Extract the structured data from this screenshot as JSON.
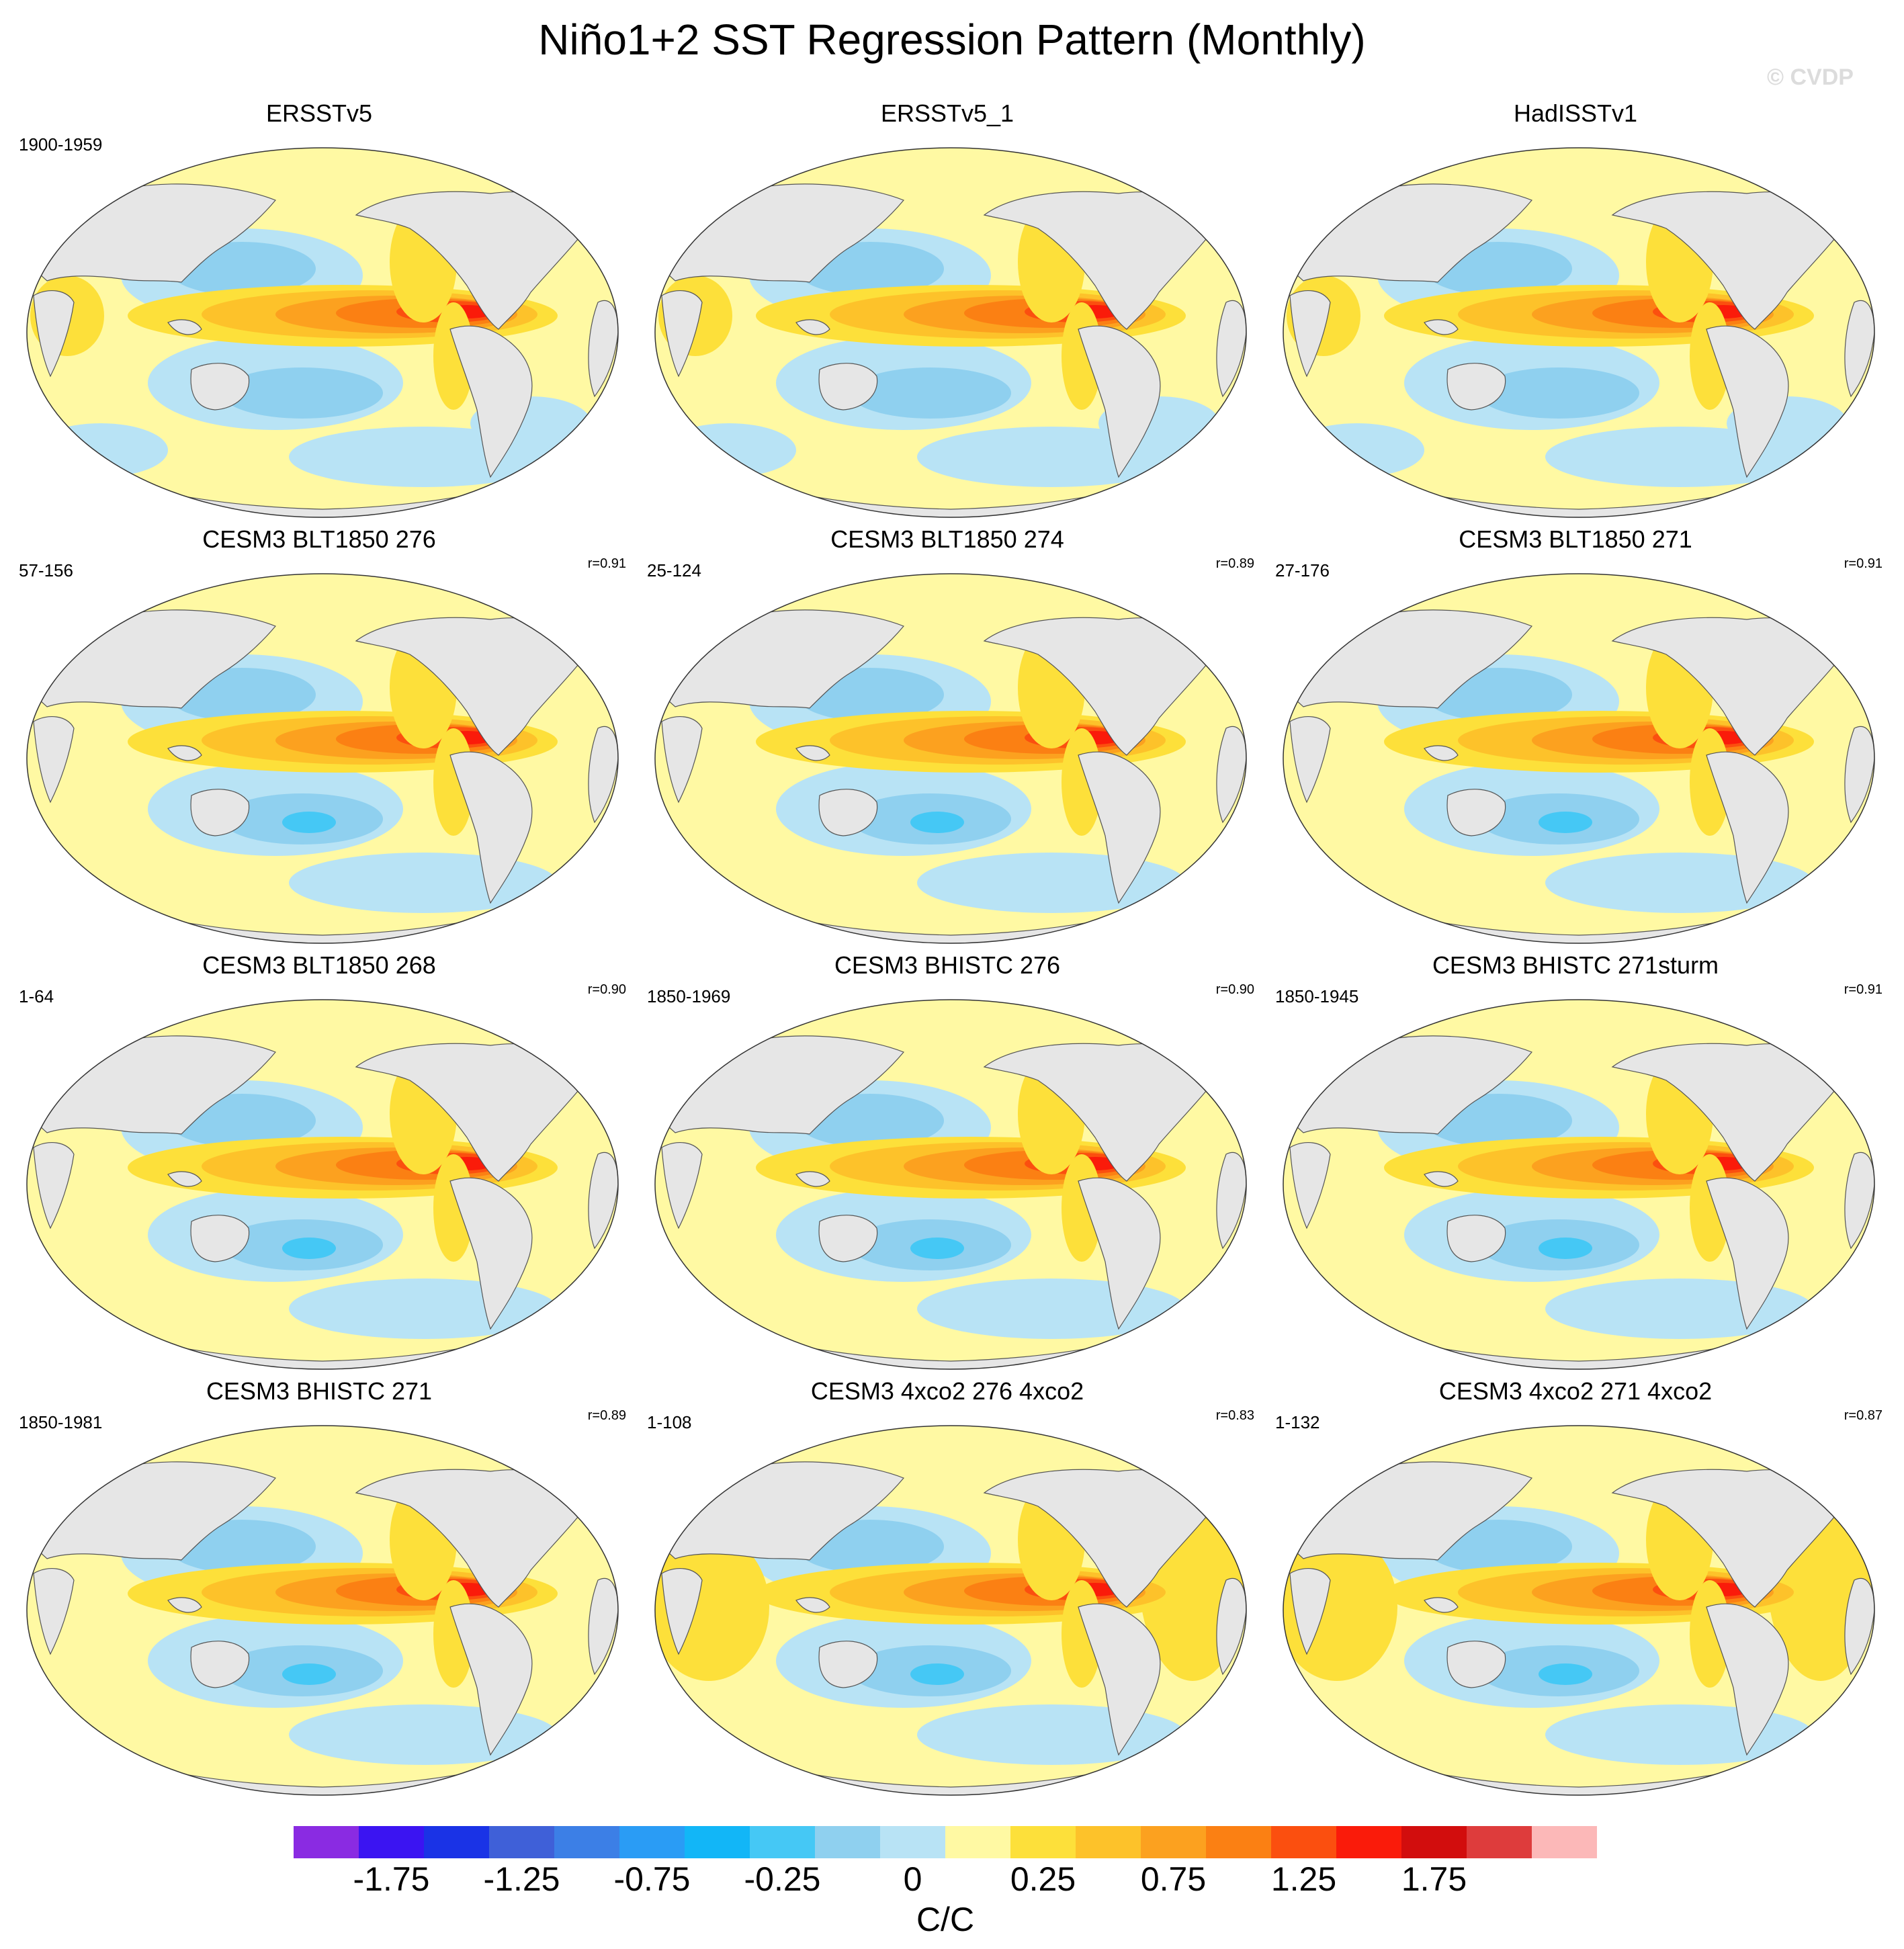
{
  "figure": {
    "title": "Niño1+2 SST Regression Pattern (Monthly)",
    "watermark": "© CVDP",
    "units": "C/C"
  },
  "colors": {
    "land": "#e6e6e6",
    "levels": [
      "#8a2be2",
      "#3b14f2",
      "#1a33e6",
      "#3f60d8",
      "#3c7fe6",
      "#2a9cf5",
      "#12b6f7",
      "#45c8f5",
      "#8fd0ef",
      "#b8e3f5",
      "#fff9a3",
      "#fde03a",
      "#fdc22a",
      "#fca11f",
      "#fb8013",
      "#fb4f0f",
      "#fa1b0a",
      "#d20d0d",
      "#de3c3c",
      "#fcb8b8"
    ],
    "water_ring": "#b8e3f5"
  },
  "colorbar": {
    "labels": [
      "-1.75",
      "-1.25",
      "-0.75",
      "-0.25",
      "0",
      "0.25",
      "0.75",
      "1.25",
      "1.75"
    ]
  },
  "panels": [
    {
      "title": "ERSSTv5",
      "period": "1900-1959",
      "corr": "",
      "pattern": "obs"
    },
    {
      "title": "ERSSTv5_1",
      "period": "",
      "corr": "",
      "pattern": "obs"
    },
    {
      "title": "HadISSTv1",
      "period": "",
      "corr": "",
      "pattern": "obs"
    },
    {
      "title": "CESM3 BLT1850 276",
      "period": "57-156",
      "corr": "r=0.91",
      "pattern": "model"
    },
    {
      "title": "CESM3 BLT1850 274",
      "period": "25-124",
      "corr": "r=0.89",
      "pattern": "model"
    },
    {
      "title": "CESM3 BLT1850 271",
      "period": "27-176",
      "corr": "r=0.91",
      "pattern": "model"
    },
    {
      "title": "CESM3 BLT1850 268",
      "period": "1-64",
      "corr": "r=0.90",
      "pattern": "model"
    },
    {
      "title": "CESM3 BHISTC 276",
      "period": "1850-1969",
      "corr": "r=0.90",
      "pattern": "model"
    },
    {
      "title": "CESM3 BHISTC 271sturm",
      "period": "1850-1945",
      "corr": "r=0.91",
      "pattern": "model"
    },
    {
      "title": "CESM3 BHISTC 271",
      "period": "1850-1981",
      "corr": "r=0.89",
      "pattern": "model"
    },
    {
      "title": "CESM3 4xco2 276 4xco2",
      "period": "1-108",
      "corr": "r=0.83",
      "pattern": "warm"
    },
    {
      "title": "CESM3 4xco2 271 4xco2",
      "period": "1-132",
      "corr": "r=0.87",
      "pattern": "warm"
    }
  ]
}
